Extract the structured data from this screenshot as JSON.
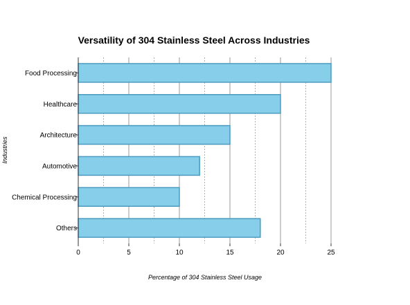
{
  "chart_data": {
    "type": "bar",
    "orientation": "horizontal",
    "title": "Versatility of 304 Stainless Steel Across Industries",
    "xlabel": "Percentage of 304 Stainless Steel Usage",
    "ylabel": "Industries",
    "categories": [
      "Food Processing",
      "Healthcare",
      "Architecture",
      "Automotive",
      "Chemical Processing",
      "Others"
    ],
    "values": [
      25,
      20,
      15,
      12,
      10,
      18
    ],
    "xlim": [
      0,
      25
    ],
    "xticks": [
      "0",
      "5",
      "10",
      "15",
      "20",
      "25"
    ],
    "grid": "x major solid, minor dashed",
    "colors": {
      "bar_fill": "#87CEEB",
      "bar_stroke": "#4A9BBF",
      "grid": "#999999",
      "axis": "#333333"
    }
  }
}
